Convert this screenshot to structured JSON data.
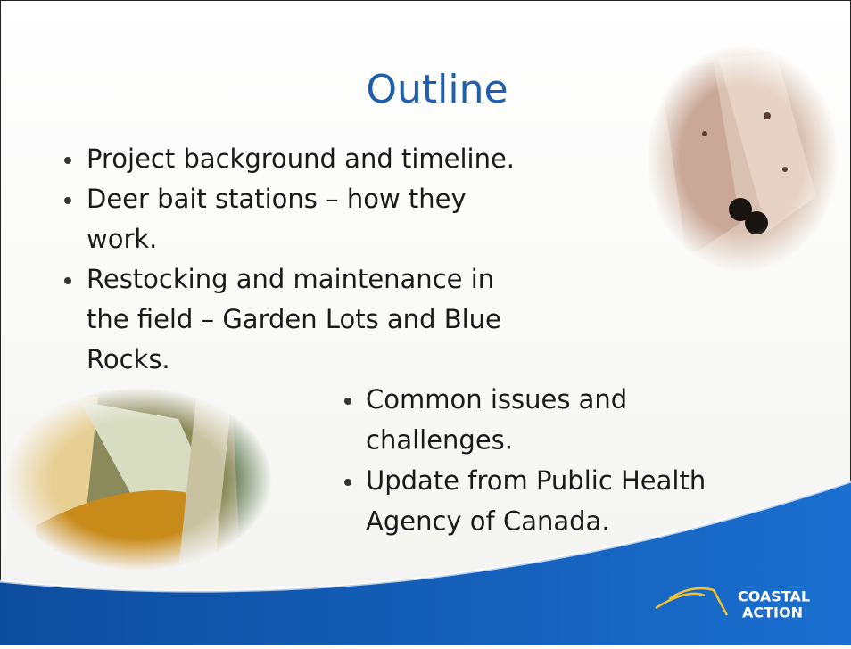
{
  "slide": {
    "title": "Outline",
    "top_bullets": [
      {
        "lines": [
          "Project background and timeline."
        ]
      },
      {
        "lines": [
          "Deer bait stations – how they",
          "work."
        ]
      },
      {
        "lines": [
          "Restocking and maintenance in",
          "the field – Garden Lots and Blue",
          "Rocks."
        ]
      }
    ],
    "bottom_bullets": [
      {
        "lines": [
          "Common issues and",
          "challenges."
        ]
      },
      {
        "lines": [
          "Update from Public Health",
          "Agency of Canada."
        ]
      }
    ],
    "logo": {
      "line1": "COASTAL",
      "line2": "ACTION"
    }
  }
}
